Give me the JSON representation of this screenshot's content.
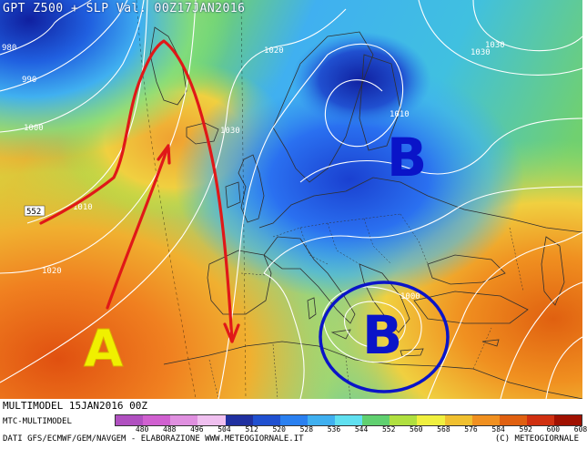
{
  "header": {
    "title": "GPT Z500 + SLP Val. 00Z17JAN2016"
  },
  "footer": {
    "model_run": "MULTIMODEL 15JAN2016 00Z",
    "product": "MTC-MULTIMODEL",
    "sources": "DATI GFS/ECMWF/GEM/NAVGEM - ELABORAZIONE WWW.METEOGIORNALE.IT",
    "copyright": "(C) METEOGIORNALE"
  },
  "legend": {
    "values": [
      "480",
      "488",
      "496",
      "504",
      "512",
      "520",
      "528",
      "536",
      "544",
      "552",
      "560",
      "568",
      "576",
      "584",
      "592",
      "600",
      "608"
    ],
    "colors": [
      "#b050c0",
      "#d060d0",
      "#e090e0",
      "#f0c0f0",
      "#2030a0",
      "#2050d0",
      "#2a80f0",
      "#40b0f0",
      "#60e0f0",
      "#60d070",
      "#b0e040",
      "#f0f040",
      "#f0c030",
      "#f09020",
      "#e06010",
      "#d03010",
      "#a01000"
    ]
  },
  "pressure_systems": [
    {
      "letter": "A",
      "color": "#f0f000",
      "meaning": "high pressure"
    },
    {
      "letter": "B",
      "color": "#0a14c8",
      "meaning": "low pressure"
    },
    {
      "letter": "B",
      "color": "#0a14c8",
      "meaning": "low pressure"
    }
  ],
  "map_labels": {
    "isobar_values": [
      "980",
      "990",
      "1000",
      "1010",
      "1020",
      "1030",
      "1020",
      "1030",
      "1030",
      "1010",
      "1000",
      "1030",
      "1010",
      "552",
      "1020"
    ]
  }
}
